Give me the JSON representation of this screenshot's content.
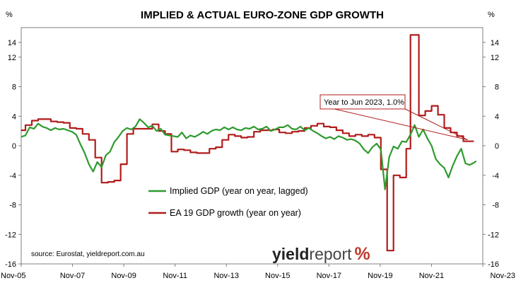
{
  "chart_data": {
    "type": "line",
    "title": "IMPLIED & ACTUAL EURO-ZONE GDP GROWTH",
    "y_unit_left": "%",
    "y_unit_right": "%",
    "ylim": [
      -16,
      16
    ],
    "yticks": [
      14,
      12,
      8,
      4,
      0,
      -4,
      -8,
      -12,
      -16
    ],
    "ytick_labels": [
      "14",
      "12",
      "8",
      "4",
      "0",
      "-4",
      "-8",
      "-12",
      "-16"
    ],
    "x_tick_labels": [
      "Nov-05",
      "Nov-07",
      "Nov-09",
      "Nov-11",
      "Nov-13",
      "Nov-15",
      "Nov-17",
      "Nov-19",
      "Nov-21",
      "Nov-23"
    ],
    "grid": false,
    "legend_placement": "center-left",
    "series": [
      {
        "name": "Implied GDP (year on year, lagged)",
        "color": "#2e9a2e",
        "points": [
          [
            "2005-11",
            1.2
          ],
          [
            "2006-01",
            1.4
          ],
          [
            "2006-03",
            2.5
          ],
          [
            "2006-05",
            2.3
          ],
          [
            "2006-07",
            3.0
          ],
          [
            "2006-09",
            2.6
          ],
          [
            "2006-11",
            2.4
          ],
          [
            "2007-01",
            2.1
          ],
          [
            "2007-03",
            2.4
          ],
          [
            "2007-05",
            2.2
          ],
          [
            "2007-07",
            2.3
          ],
          [
            "2007-09",
            2.1
          ],
          [
            "2007-11",
            1.9
          ],
          [
            "2008-01",
            1.5
          ],
          [
            "2008-03",
            0.2
          ],
          [
            "2008-05",
            -1.0
          ],
          [
            "2008-07",
            -2.5
          ],
          [
            "2008-09",
            -3.5
          ],
          [
            "2008-11",
            -2.2
          ],
          [
            "2009-01",
            -2.9
          ],
          [
            "2009-03",
            -1.3
          ],
          [
            "2009-05",
            -0.8
          ],
          [
            "2009-07",
            0.5
          ],
          [
            "2009-09",
            1.2
          ],
          [
            "2009-11",
            2.0
          ],
          [
            "2010-01",
            2.4
          ],
          [
            "2010-03",
            2.2
          ],
          [
            "2010-05",
            2.6
          ],
          [
            "2010-07",
            3.6
          ],
          [
            "2010-09",
            3.1
          ],
          [
            "2010-11",
            2.5
          ],
          [
            "2011-01",
            2.7
          ],
          [
            "2011-03",
            2.0
          ],
          [
            "2011-05",
            2.3
          ],
          [
            "2011-07",
            1.5
          ],
          [
            "2011-09",
            1.4
          ],
          [
            "2011-11",
            1.3
          ],
          [
            "2012-01",
            1.2
          ],
          [
            "2012-03",
            1.8
          ],
          [
            "2012-05",
            1.0
          ],
          [
            "2012-07",
            1.4
          ],
          [
            "2012-09",
            1.2
          ],
          [
            "2012-11",
            1.5
          ],
          [
            "2013-01",
            1.9
          ],
          [
            "2013-03",
            1.6
          ],
          [
            "2013-05",
            2.0
          ],
          [
            "2013-07",
            2.2
          ],
          [
            "2013-09",
            2.1
          ],
          [
            "2013-11",
            2.5
          ],
          [
            "2014-01",
            2.2
          ],
          [
            "2014-03",
            2.5
          ],
          [
            "2014-05",
            2.2
          ],
          [
            "2014-07",
            2.1
          ],
          [
            "2014-09",
            2.4
          ],
          [
            "2014-11",
            2.3
          ],
          [
            "2015-01",
            2.6
          ],
          [
            "2015-03",
            2.2
          ],
          [
            "2015-05",
            2.3
          ],
          [
            "2015-07",
            2.6
          ],
          [
            "2015-09",
            2.0
          ],
          [
            "2015-11",
            2.2
          ],
          [
            "2016-01",
            2.5
          ],
          [
            "2016-03",
            2.5
          ],
          [
            "2016-05",
            2.8
          ],
          [
            "2016-07",
            2.3
          ],
          [
            "2016-09",
            2.2
          ],
          [
            "2016-11",
            2.6
          ],
          [
            "2017-01",
            2.1
          ],
          [
            "2017-03",
            2.4
          ],
          [
            "2017-05",
            2.0
          ],
          [
            "2017-07",
            1.7
          ],
          [
            "2017-09",
            1.3
          ],
          [
            "2017-11",
            1.0
          ],
          [
            "2018-01",
            1.2
          ],
          [
            "2018-03",
            0.9
          ],
          [
            "2018-05",
            1.3
          ],
          [
            "2018-07",
            1.1
          ],
          [
            "2018-09",
            0.8
          ],
          [
            "2018-11",
            0.9
          ],
          [
            "2019-01",
            0.7
          ],
          [
            "2019-03",
            0.3
          ],
          [
            "2019-05",
            -0.5
          ],
          [
            "2019-07",
            -1.0
          ],
          [
            "2019-09",
            -0.2
          ],
          [
            "2019-11",
            0.3
          ],
          [
            "2020-01",
            -0.5
          ],
          [
            "2020-03",
            -5.9
          ],
          [
            "2020-05",
            -1.5
          ],
          [
            "2020-07",
            -0.1
          ],
          [
            "2020-09",
            -0.4
          ],
          [
            "2020-11",
            0.6
          ],
          [
            "2021-01",
            0.5
          ],
          [
            "2021-03",
            1.5
          ],
          [
            "2021-05",
            2.8
          ],
          [
            "2021-07",
            1.2
          ],
          [
            "2021-09",
            2.2
          ],
          [
            "2021-11",
            1.0
          ],
          [
            "2022-01",
            0.0
          ],
          [
            "2022-03",
            -1.8
          ],
          [
            "2022-05",
            -2.5
          ],
          [
            "2022-07",
            -3.0
          ],
          [
            "2022-09",
            -4.3
          ],
          [
            "2022-11",
            -2.7
          ],
          [
            "2023-01",
            -1.4
          ],
          [
            "2023-03",
            -0.4
          ],
          [
            "2023-05",
            -2.4
          ],
          [
            "2023-07",
            -2.6
          ],
          [
            "2023-09",
            -2.3
          ],
          [
            "2023-10",
            -2.1
          ]
        ]
      },
      {
        "name": "EA 19 GDP growth (year on year)",
        "color": "#b01c1c",
        "points": [
          [
            "2005-11",
            2.1
          ],
          [
            "2006-01",
            2.8
          ],
          [
            "2006-04",
            3.4
          ],
          [
            "2006-07",
            3.6
          ],
          [
            "2006-10",
            3.6
          ],
          [
            "2007-01",
            3.3
          ],
          [
            "2007-04",
            3.2
          ],
          [
            "2007-07",
            3.1
          ],
          [
            "2007-10",
            2.4
          ],
          [
            "2008-01",
            2.3
          ],
          [
            "2008-04",
            1.6
          ],
          [
            "2008-07",
            0.8
          ],
          [
            "2008-10",
            -1.6
          ],
          [
            "2009-01",
            -5.0
          ],
          [
            "2009-04",
            -4.9
          ],
          [
            "2009-07",
            -4.7
          ],
          [
            "2009-10",
            -2.5
          ],
          [
            "2010-01",
            1.6
          ],
          [
            "2010-04",
            2.3
          ],
          [
            "2010-07",
            2.3
          ],
          [
            "2010-10",
            2.3
          ],
          [
            "2011-01",
            2.9
          ],
          [
            "2011-04",
            2.0
          ],
          [
            "2011-07",
            1.6
          ],
          [
            "2011-10",
            -0.8
          ],
          [
            "2012-01",
            -0.5
          ],
          [
            "2012-04",
            -0.6
          ],
          [
            "2012-07",
            -0.9
          ],
          [
            "2012-10",
            -1.0
          ],
          [
            "2013-01",
            -1.0
          ],
          [
            "2013-04",
            -0.4
          ],
          [
            "2013-07",
            -0.2
          ],
          [
            "2013-10",
            0.8
          ],
          [
            "2014-01",
            1.5
          ],
          [
            "2014-04",
            1.3
          ],
          [
            "2014-07",
            1.1
          ],
          [
            "2014-10",
            1.2
          ],
          [
            "2015-01",
            1.9
          ],
          [
            "2015-04",
            2.1
          ],
          [
            "2015-07",
            2.1
          ],
          [
            "2015-10",
            2.2
          ],
          [
            "2016-01",
            1.8
          ],
          [
            "2016-04",
            1.7
          ],
          [
            "2016-07",
            1.9
          ],
          [
            "2016-10",
            2.0
          ],
          [
            "2017-01",
            2.4
          ],
          [
            "2017-04",
            2.7
          ],
          [
            "2017-07",
            3.0
          ],
          [
            "2017-10",
            2.6
          ],
          [
            "2018-01",
            2.5
          ],
          [
            "2018-04",
            2.1
          ],
          [
            "2018-07",
            1.7
          ],
          [
            "2018-10",
            1.3
          ],
          [
            "2019-01",
            1.5
          ],
          [
            "2019-04",
            1.3
          ],
          [
            "2019-07",
            1.5
          ],
          [
            "2019-10",
            1.1
          ],
          [
            "2020-01",
            -3.2
          ],
          [
            "2020-04",
            -14.2
          ],
          [
            "2020-07",
            -4.0
          ],
          [
            "2020-10",
            -4.3
          ],
          [
            "2021-01",
            -0.4
          ],
          [
            "2021-03",
            15.0
          ],
          [
            "2021-07",
            4.1
          ],
          [
            "2021-10",
            4.7
          ],
          [
            "2022-01",
            5.4
          ],
          [
            "2022-04",
            4.2
          ],
          [
            "2022-07",
            2.4
          ],
          [
            "2022-10",
            1.8
          ],
          [
            "2023-01",
            1.3
          ],
          [
            "2023-04",
            0.6
          ],
          [
            "2023-07",
            0.6
          ]
        ]
      }
    ],
    "annotations": [
      {
        "text": "Year to Jun 2023, 1.0%",
        "target": [
          "2023-06",
          0.8
        ]
      }
    ],
    "source": "source: Eurostat, yieldreport.com.au"
  },
  "logo": {
    "text_main": "yield",
    "text_sub": "report",
    "text_pct": "%"
  },
  "colors": {
    "axis": "#808080",
    "green": "#2e9a2e",
    "red": "#b01c1c",
    "logo_pct": "#c0392b"
  }
}
